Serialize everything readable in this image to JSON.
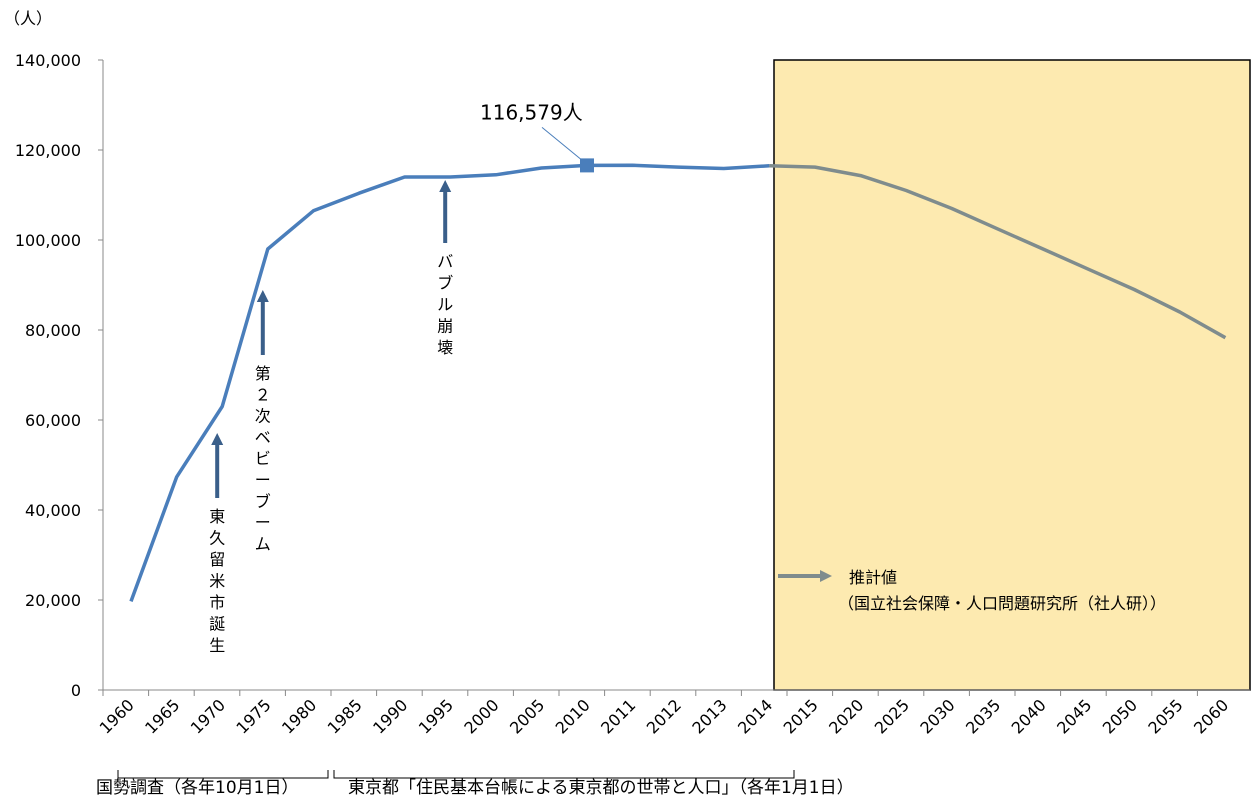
{
  "chart_data": {
    "type": "line",
    "y_unit": "（人）",
    "ylim": [
      0,
      140000
    ],
    "y_ticks": [
      "0",
      "20,000",
      "40,000",
      "60,000",
      "80,000",
      "100,000",
      "120,000",
      "140,000"
    ],
    "categories": [
      "1960",
      "1965",
      "1970",
      "1975",
      "1980",
      "1985",
      "1990",
      "1995",
      "2000",
      "2005",
      "2010",
      "2011",
      "2012",
      "2013",
      "2014",
      "2015",
      "2020",
      "2025",
      "2030",
      "2035",
      "2040",
      "2045",
      "2050",
      "2055",
      "2060"
    ],
    "values": [
      19700,
      47300,
      63000,
      98000,
      106500,
      110400,
      114000,
      114000,
      114500,
      116000,
      116579,
      116600,
      116200,
      115900,
      116500,
      116200,
      114300,
      111000,
      107000,
      102500,
      98000,
      93500,
      89000,
      84000,
      78300
    ],
    "projection_start_category": "2015",
    "colors": {
      "actual": "#4a7ebb",
      "projection": "#7f8c8d",
      "projection_band": "#fdeab0",
      "arrow": "#3a5f8a"
    },
    "grid": false,
    "highlight": {
      "category": "2010",
      "value": 116579,
      "label": "116,579人"
    },
    "annotations": [
      {
        "category": "1970",
        "text": "東久留米市誕生"
      },
      {
        "category": "1975",
        "text": "第２次ベビーブーム"
      },
      {
        "category": "1995",
        "text": "バブル崩壊"
      }
    ],
    "projection_label": "推計値",
    "projection_source": "（国立社会保障・人口問題研究所（社人研））",
    "source_notes": [
      "国勢調査（各年10月1日）",
      "東京都「住民基本台帳による東京都の世帯と人口」（各年1月1日）"
    ]
  }
}
